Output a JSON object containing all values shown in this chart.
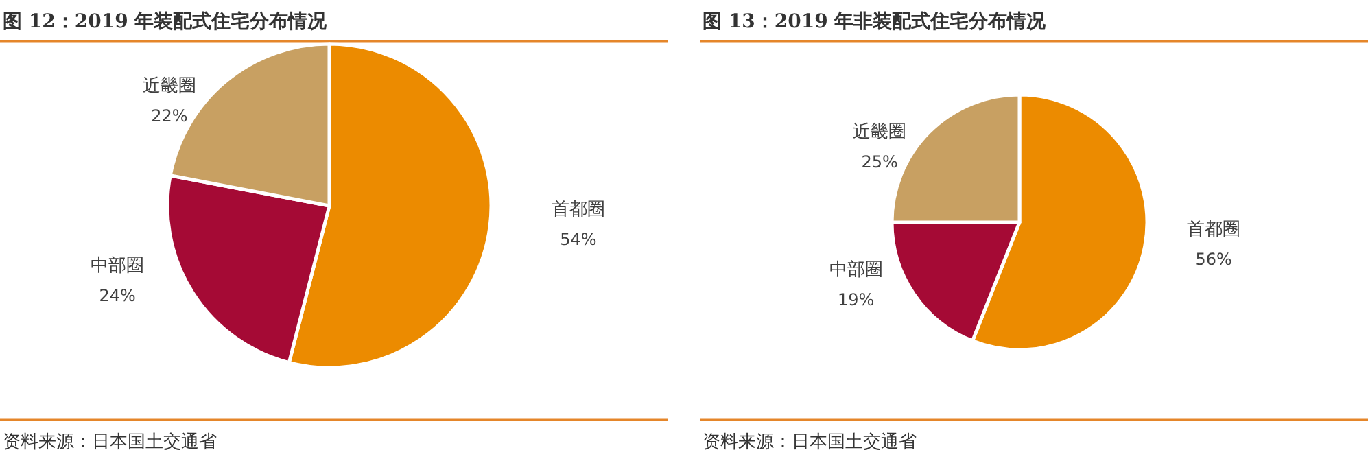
{
  "chart_data": [
    {
      "type": "pie",
      "title": "图 12：2019 年装配式住宅分布情况",
      "categories": [
        "首都圈",
        "中部圈",
        "近畿圈"
      ],
      "values": [
        54,
        24,
        22
      ],
      "colors": [
        "#ec8b00",
        "#a50a35",
        "#c8a062"
      ],
      "value_labels": [
        "54%",
        "24%",
        "22%"
      ],
      "annotations": [
        "资料来源：日本国土交通省"
      ]
    },
    {
      "type": "pie",
      "title": "图 13：2019 年非装配式住宅分布情况",
      "categories": [
        "首都圈",
        "中部圈",
        "近畿圈"
      ],
      "values": [
        56,
        19,
        25
      ],
      "colors": [
        "#ec8b00",
        "#a50a35",
        "#c8a062"
      ],
      "value_labels": [
        "56%",
        "19%",
        "25%"
      ],
      "annotations": [
        "资料来源：日本国土交通省"
      ]
    }
  ]
}
